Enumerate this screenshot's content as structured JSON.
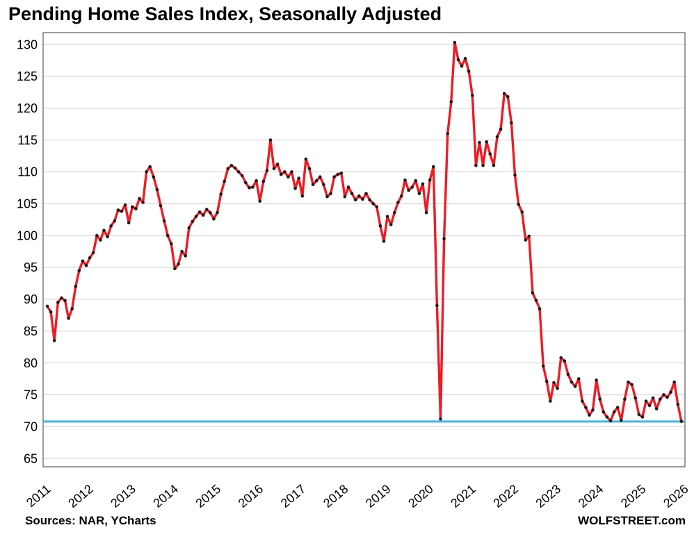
{
  "page": {
    "title": "Pending Home Sales Index, Seasonally Adjusted",
    "sources": "Sources: NAR, YCharts",
    "brand": "WOLFSTREET.com"
  },
  "chart_data": {
    "type": "line",
    "title": "Pending Home Sales Index, Seasonally Adjusted",
    "xlabel": "",
    "ylabel": "",
    "x_unit": "month",
    "x_start": "2011-01",
    "x_end": "2025-12",
    "x_tick_labels": [
      "2011",
      "2012",
      "2013",
      "2014",
      "2015",
      "2016",
      "2017",
      "2018",
      "2019",
      "2020",
      "2021",
      "2022",
      "2023",
      "2024",
      "2025",
      "2026"
    ],
    "ylim": [
      65,
      130
    ],
    "y_ticks": [
      65,
      70,
      75,
      80,
      85,
      90,
      95,
      100,
      105,
      110,
      115,
      120,
      125,
      130
    ],
    "grid": "horizontal",
    "legend_position": "none",
    "baseline": {
      "name": "latest-level-reference-line",
      "value": 70.8,
      "color": "#3fb4e9"
    },
    "series": [
      {
        "name": "Pending Home Sales Index (seasonally adjusted)",
        "color": "#ed1c24",
        "marker_color": "#1a1a1a",
        "values": [
          88.9,
          88.0,
          83.5,
          89.5,
          90.2,
          89.8,
          87.0,
          88.5,
          92.0,
          94.5,
          96.0,
          95.3,
          96.5,
          97.3,
          100.0,
          99.3,
          100.8,
          99.8,
          101.5,
          102.3,
          104.0,
          103.8,
          104.8,
          102.0,
          104.5,
          104.2,
          105.8,
          105.2,
          110.0,
          110.8,
          109.2,
          107.2,
          104.7,
          102.3,
          100.0,
          98.7,
          94.8,
          95.5,
          97.5,
          96.8,
          101.2,
          102.2,
          103.0,
          103.7,
          103.2,
          104.1,
          103.6,
          102.6,
          103.6,
          106.5,
          108.5,
          110.5,
          111.0,
          110.6,
          110.0,
          109.4,
          108.3,
          107.5,
          107.6,
          108.6,
          105.4,
          108.5,
          110.2,
          115.0,
          110.5,
          111.2,
          109.6,
          110.0,
          109.2,
          110.0,
          107.4,
          109.0,
          106.2,
          112.0,
          110.5,
          108.0,
          108.6,
          109.2,
          108.0,
          106.1,
          106.6,
          109.2,
          109.6,
          109.8,
          106.1,
          107.6,
          106.6,
          105.6,
          106.2,
          105.7,
          106.6,
          105.6,
          105.0,
          104.5,
          101.5,
          99.1,
          103.0,
          101.7,
          103.6,
          105.2,
          106.2,
          108.7,
          107.1,
          107.6,
          108.6,
          106.6,
          108.1,
          103.6,
          108.7,
          110.8,
          89.0,
          71.2,
          99.5,
          116.0,
          121.0,
          130.3,
          127.6,
          126.6,
          127.8,
          125.8,
          122.0,
          111.0,
          114.6,
          111.0,
          114.7,
          112.8,
          111.0,
          115.5,
          116.7,
          122.3,
          121.8,
          117.7,
          109.5,
          104.9,
          103.7,
          99.3,
          99.9,
          91.0,
          89.8,
          88.5,
          79.5,
          77.1,
          74.0,
          76.9,
          76.0,
          80.8,
          80.3,
          78.2,
          77.0,
          76.3,
          77.5,
          74.0,
          73.0,
          71.8,
          72.6,
          77.3,
          74.3,
          72.3,
          71.5,
          70.9,
          72.3,
          73.0,
          71.0,
          74.3,
          77.0,
          76.6,
          74.5,
          71.9,
          71.5,
          74.0,
          73.3,
          74.5,
          72.8,
          74.3,
          75.0,
          74.6,
          75.4,
          77.0,
          73.5,
          70.8
        ]
      }
    ]
  }
}
